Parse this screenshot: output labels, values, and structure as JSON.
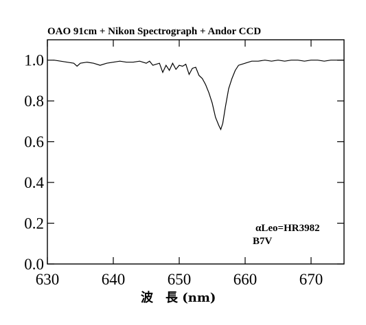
{
  "chart_data": {
    "type": "line",
    "title": "OAO 91cm + Nikon Spectrograph + Andor CCD",
    "xlabel": "波　長 (nm)",
    "ylabel": "",
    "xlim": [
      630,
      675
    ],
    "ylim": [
      0.0,
      1.1
    ],
    "x_ticks": [
      "630",
      "640",
      "650",
      "660",
      "670"
    ],
    "y_ticks": [
      "0.0",
      "0.2",
      "0.4",
      "0.6",
      "0.8",
      "1.0"
    ],
    "annotations": [
      "αLeo=HR3982",
      "B7V"
    ],
    "grid": false,
    "series": [
      {
        "x": [
          631,
          632,
          633,
          634,
          634.5,
          635,
          636,
          637,
          638,
          639,
          640,
          641,
          642,
          643,
          644,
          645,
          645.5,
          646,
          647,
          647.5,
          648,
          648.5,
          649,
          649.5,
          650,
          650.5,
          651,
          651.5,
          652,
          652.5,
          653,
          653.5,
          654,
          654.5,
          655,
          655.5,
          656,
          656.3,
          656.6,
          657,
          657.5,
          658,
          658.5,
          659,
          660,
          661,
          662,
          663,
          664,
          665,
          666,
          667,
          668,
          669,
          670,
          671,
          672,
          673,
          674,
          675
        ],
        "y": [
          1.0,
          0.995,
          0.99,
          0.985,
          0.97,
          0.985,
          0.99,
          0.985,
          0.975,
          0.985,
          0.99,
          0.995,
          0.99,
          0.99,
          0.995,
          0.985,
          0.995,
          0.975,
          0.985,
          0.94,
          0.975,
          0.95,
          0.985,
          0.955,
          0.975,
          0.97,
          0.98,
          0.93,
          0.96,
          0.965,
          0.925,
          0.91,
          0.88,
          0.84,
          0.79,
          0.72,
          0.68,
          0.66,
          0.69,
          0.77,
          0.86,
          0.91,
          0.95,
          0.975,
          0.985,
          0.995,
          0.995,
          1.0,
          0.995,
          1.0,
          0.995,
          1.0,
          1.0,
          0.995,
          1.0,
          1.0,
          0.995,
          1.0,
          1.0,
          1.0
        ]
      }
    ]
  }
}
